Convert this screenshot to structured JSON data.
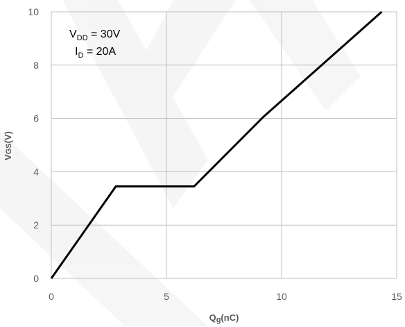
{
  "chart_data": {
    "type": "line",
    "xlabel": "Qg(nC)",
    "ylabel": "VGS(V)",
    "xlim": [
      0,
      15
    ],
    "ylim": [
      0,
      10
    ],
    "xticks": [
      0,
      5,
      10,
      15
    ],
    "yticks": [
      0,
      2,
      4,
      6,
      8,
      10
    ],
    "grid": true,
    "series": [
      {
        "x": [
          0,
          2.8,
          6.2,
          9.2,
          14.35
        ],
        "y": [
          0,
          3.45,
          3.45,
          6.05,
          10.0
        ],
        "color": "#000000"
      }
    ],
    "annotations": [
      {
        "text": "VDD = 30V"
      },
      {
        "text": "ID = 20A"
      }
    ]
  },
  "watermark": {
    "color": "#eeeeee"
  }
}
